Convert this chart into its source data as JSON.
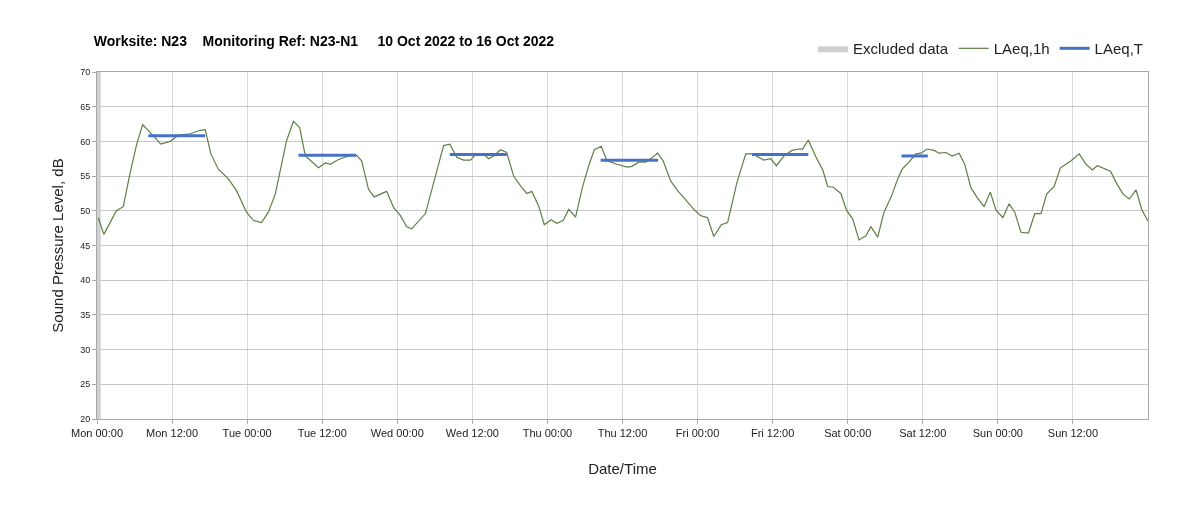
{
  "chart_data": {
    "type": "line",
    "title": "Worksite: N23    Monitoring Ref: N23-N1     10 Oct 2022 to 16 Oct 2022",
    "xlabel": "Date/Time",
    "ylabel": "Sound Pressure Level, dB",
    "xlim": [
      "2022-10-10T00:00",
      "2022-10-17T00:00"
    ],
    "xticks": [
      {
        "value": "2022-10-10T00:00",
        "label": "Mon 00:00"
      },
      {
        "value": "2022-10-10T12:00",
        "label": "Mon 12:00"
      },
      {
        "value": "2022-10-11T00:00",
        "label": "Tue 00:00"
      },
      {
        "value": "2022-10-11T12:00",
        "label": "Tue 12:00"
      },
      {
        "value": "2022-10-12T00:00",
        "label": "Wed 00:00"
      },
      {
        "value": "2022-10-12T12:00",
        "label": "Wed 12:00"
      },
      {
        "value": "2022-10-13T00:00",
        "label": "Thu 00:00"
      },
      {
        "value": "2022-10-13T12:00",
        "label": "Thu 12:00"
      },
      {
        "value": "2022-10-14T00:00",
        "label": "Fri 00:00"
      },
      {
        "value": "2022-10-14T12:00",
        "label": "Fri 12:00"
      },
      {
        "value": "2022-10-15T00:00",
        "label": "Sat 00:00"
      },
      {
        "value": "2022-10-15T12:00",
        "label": "Sat 12:00"
      },
      {
        "value": "2022-10-16T00:00",
        "label": "Sun 00:00"
      },
      {
        "value": "2022-10-16T12:00",
        "label": "Sun 12:00"
      }
    ],
    "ylim": [
      20,
      70
    ],
    "yticks": [
      20,
      25,
      30,
      35,
      40,
      45,
      50,
      55,
      60,
      65,
      70
    ],
    "grid": true,
    "legend": "top right",
    "marker": "none",
    "line_style": "solid",
    "bands": [
      {
        "axis": "x",
        "from": "2022-10-10T00:00",
        "to": "2022-10-10T00:36",
        "label": "Excluded data",
        "color": "#d0d0d0"
      }
    ],
    "series": [
      {
        "name": "LAeq,1h",
        "color": "#5f7f45",
        "x": [
          "2022-10-10T00:12",
          "2022-10-10T01:06",
          "2022-10-10T03:06",
          "2022-10-10T04:12",
          "2022-10-10T05:18",
          "2022-10-10T06:21",
          "2022-10-10T07:18",
          "2022-10-10T08:30",
          "2022-10-10T10:12",
          "2022-10-10T11:42",
          "2022-10-10T13:00",
          "2022-10-10T14:54",
          "2022-10-10T16:30",
          "2022-10-10T17:18",
          "2022-10-10T18:12",
          "2022-10-10T19:24",
          "2022-10-10T21:00",
          "2022-10-10T22:18",
          "2022-10-10T23:54",
          "2022-10-11T01:00",
          "2022-10-11T02:18",
          "2022-10-11T03:24",
          "2022-10-11T04:30",
          "2022-10-11T06:18",
          "2022-10-11T07:24",
          "2022-10-11T08:24",
          "2022-10-11T09:18",
          "2022-10-11T10:18",
          "2022-10-11T11:24",
          "2022-10-11T12:30",
          "2022-10-11T13:18",
          "2022-10-11T14:36",
          "2022-10-11T16:12",
          "2022-10-11T17:30",
          "2022-10-11T18:18",
          "2022-10-11T19:24",
          "2022-10-11T20:18",
          "2022-10-11T22:18",
          "2022-10-11T23:24",
          "2022-10-12T00:30",
          "2022-10-12T01:30",
          "2022-10-12T02:18",
          "2022-10-12T04:30",
          "2022-10-12T07:24",
          "2022-10-12T08:24",
          "2022-10-12T09:30",
          "2022-10-12T10:36",
          "2022-10-12T11:42",
          "2022-10-12T12:30",
          "2022-10-12T13:54",
          "2022-10-12T14:36",
          "2022-10-12T15:24",
          "2022-10-12T16:30",
          "2022-10-12T17:30",
          "2022-10-12T18:36",
          "2022-10-12T19:42",
          "2022-10-12T20:42",
          "2022-10-12T21:30",
          "2022-10-12T22:36",
          "2022-10-12T23:30",
          "2022-10-13T00:36",
          "2022-10-13T01:30",
          "2022-10-13T02:30",
          "2022-10-13T03:24",
          "2022-10-13T04:30",
          "2022-10-13T05:36",
          "2022-10-13T06:36",
          "2022-10-13T07:30",
          "2022-10-13T08:36",
          "2022-10-13T09:30",
          "2022-10-13T11:06",
          "2022-10-13T12:42",
          "2022-10-13T13:30",
          "2022-10-13T14:36",
          "2022-10-13T15:42",
          "2022-10-13T16:48",
          "2022-10-13T17:36",
          "2022-10-13T18:30",
          "2022-10-13T19:42",
          "2022-10-13T20:48",
          "2022-10-13T21:48",
          "2022-10-13T23:24",
          "2022-10-14T00:30",
          "2022-10-14T01:36",
          "2022-10-14T02:36",
          "2022-10-14T03:48",
          "2022-10-14T04:48",
          "2022-10-14T06:18",
          "2022-10-14T07:42",
          "2022-10-14T08:48",
          "2022-10-14T10:36",
          "2022-10-14T11:42",
          "2022-10-14T12:36",
          "2022-10-14T13:48",
          "2022-10-14T15:06",
          "2022-10-14T16:12",
          "2022-10-14T16:48",
          "2022-10-14T17:42",
          "2022-10-14T18:54",
          "2022-10-14T20:00",
          "2022-10-14T20:48",
          "2022-10-14T21:42",
          "2022-10-14T22:54",
          "2022-10-14T23:48",
          "2022-10-15T00:48",
          "2022-10-15T01:48",
          "2022-10-15T02:54",
          "2022-10-15T03:42",
          "2022-10-15T04:48",
          "2022-10-15T05:48",
          "2022-10-15T06:54",
          "2022-10-15T08:00",
          "2022-10-15T08:42",
          "2022-10-15T09:48",
          "2022-10-15T10:54",
          "2022-10-15T11:42",
          "2022-10-15T12:42",
          "2022-10-15T13:48",
          "2022-10-15T14:36",
          "2022-10-15T15:42",
          "2022-10-15T16:42",
          "2022-10-15T17:48",
          "2022-10-15T18:42",
          "2022-10-15T19:42",
          "2022-10-15T20:42",
          "2022-10-15T21:48",
          "2022-10-15T22:48",
          "2022-10-15T23:42",
          "2022-10-16T00:48",
          "2022-10-16T01:48",
          "2022-10-16T02:42",
          "2022-10-16T03:42",
          "2022-10-16T04:54",
          "2022-10-16T05:54",
          "2022-10-16T06:54",
          "2022-10-16T07:48",
          "2022-10-16T09:00",
          "2022-10-16T10:00",
          "2022-10-16T11:42",
          "2022-10-16T13:00",
          "2022-10-16T14:06",
          "2022-10-16T15:06",
          "2022-10-16T15:54",
          "2022-10-16T18:00",
          "2022-10-16T18:54",
          "2022-10-16T20:00",
          "2022-10-16T21:00",
          "2022-10-16T22:06",
          "2022-10-16T23:00",
          "2022-10-17T00:00"
        ],
        "values": [
          49.0,
          46.6,
          50.0,
          50.6,
          55.5,
          59.6,
          62.4,
          61.3,
          59.6,
          60.0,
          60.9,
          61.1,
          61.6,
          61.7,
          58.2,
          56.0,
          54.6,
          52.9,
          49.8,
          48.6,
          48.3,
          49.8,
          52.4,
          60.1,
          62.9,
          62.0,
          57.9,
          57.1,
          56.2,
          56.9,
          56.7,
          57.4,
          57.9,
          58.0,
          57.2,
          53.1,
          52.0,
          52.8,
          50.5,
          49.3,
          47.7,
          47.4,
          49.6,
          59.4,
          59.6,
          57.7,
          57.3,
          57.3,
          58.1,
          58.1,
          57.5,
          57.9,
          58.8,
          58.4,
          55.0,
          53.6,
          52.5,
          52.8,
          50.7,
          48.0,
          48.7,
          48.2,
          48.6,
          50.2,
          49.1,
          53.4,
          56.5,
          58.8,
          59.3,
          57.2,
          56.7,
          56.3,
          56.4,
          57.0,
          57.0,
          57.7,
          58.3,
          57.2,
          54.3,
          52.9,
          51.9,
          50.2,
          49.3,
          49.0,
          46.3,
          48.0,
          48.3,
          54.1,
          58.2,
          58.2,
          57.3,
          57.5,
          56.5,
          57.9,
          58.7,
          58.9,
          58.9,
          60.2,
          57.8,
          55.9,
          53.5,
          53.4,
          52.5,
          50.1,
          48.8,
          45.8,
          46.4,
          47.7,
          46.2,
          49.8,
          51.9,
          54.6,
          56.0,
          57.0,
          58.2,
          58.3,
          58.9,
          58.7,
          58.3,
          58.4,
          57.9,
          58.3,
          56.7,
          53.3,
          51.9,
          50.6,
          52.7,
          50.1,
          49.0,
          51.0,
          49.8,
          46.9,
          46.8,
          49.6,
          49.6,
          52.4,
          53.5,
          56.2,
          57.2,
          58.2,
          56.7,
          55.9,
          56.5,
          55.7,
          54.1,
          52.4,
          51.7,
          53.0,
          50.2,
          48.5
        ]
      },
      {
        "name": "LAeq,T",
        "color": "#4472c4",
        "x": [
          "2022-10-10T08:12",
          "2022-10-10T17:18"
        ],
        "values": [
          60.8,
          60.8
        ]
      },
      {
        "color": "#4472c4",
        "x": [
          "2022-10-11T08:12",
          "2022-10-11T17:24"
        ],
        "values": [
          58.0,
          58.0
        ]
      },
      {
        "color": "#4472c4",
        "x": [
          "2022-10-12T08:24",
          "2022-10-12T17:30"
        ],
        "values": [
          58.1,
          58.1
        ]
      },
      {
        "color": "#4472c4",
        "x": [
          "2022-10-13T08:30",
          "2022-10-13T17:42"
        ],
        "values": [
          57.3,
          57.3
        ]
      },
      {
        "color": "#4472c4",
        "x": [
          "2022-10-14T08:42",
          "2022-10-14T17:42"
        ],
        "values": [
          58.1,
          58.1
        ]
      },
      {
        "color": "#4472c4",
        "x": [
          "2022-10-15T08:36",
          "2022-10-15T12:48"
        ],
        "values": [
          57.9,
          57.9
        ]
      }
    ]
  }
}
